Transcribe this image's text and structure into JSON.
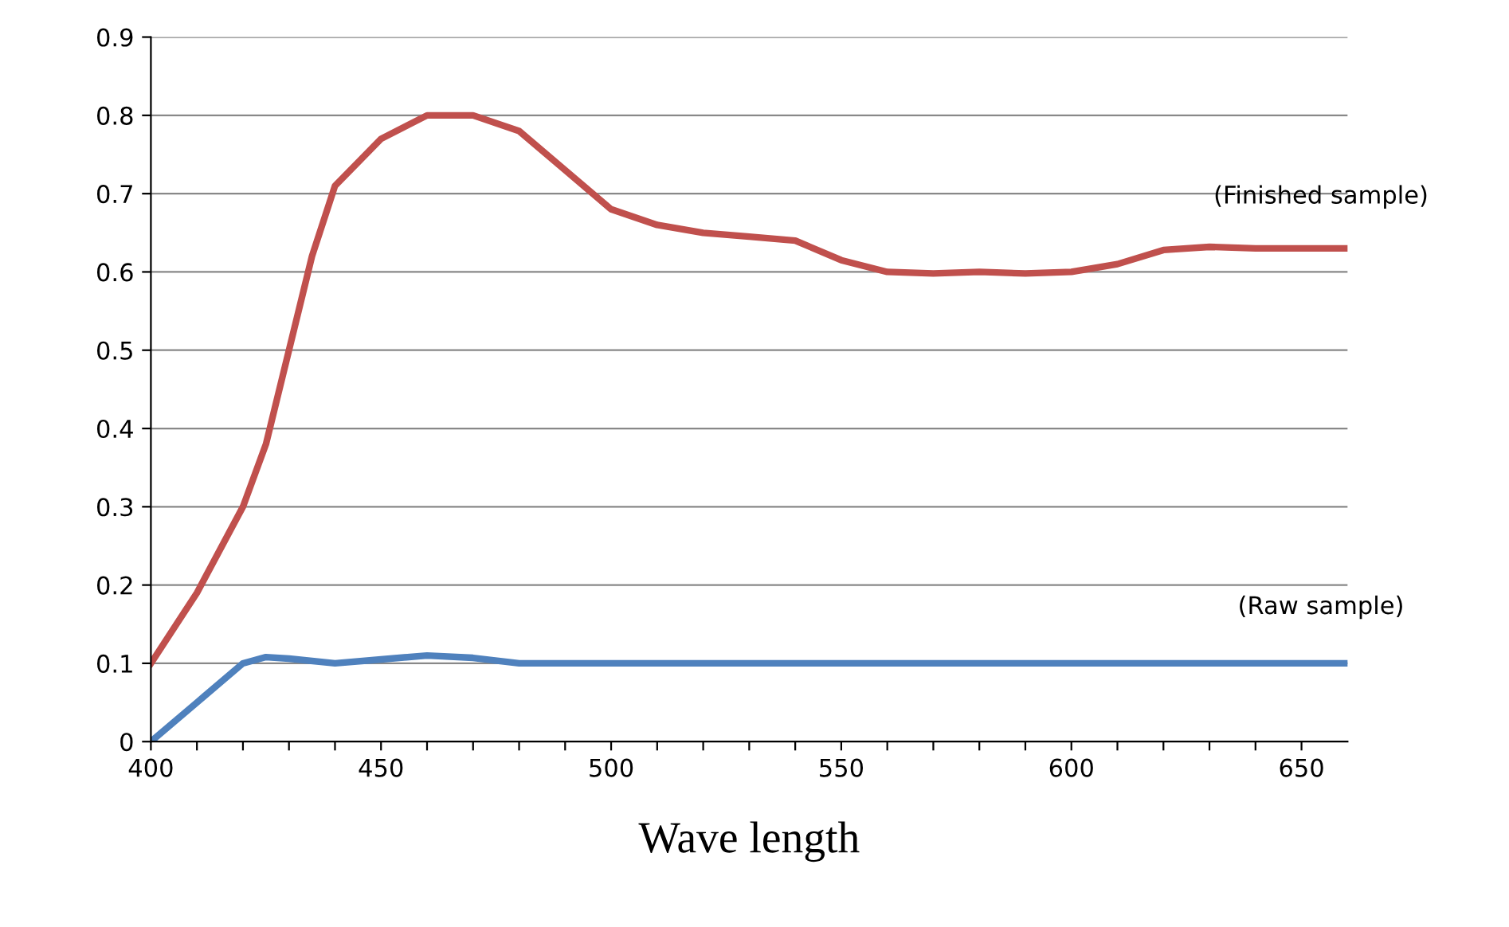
{
  "chart_data": {
    "type": "line",
    "xlabel": "Wave length",
    "xlim": [
      400,
      660
    ],
    "ylim": [
      0,
      0.9
    ],
    "xticks": [
      400,
      {
        "value": 410,
        "label": null
      },
      {
        "value": 420,
        "label": null
      },
      {
        "value": 430,
        "label": null
      },
      {
        "value": 440,
        "label": null
      },
      450,
      {
        "value": 460,
        "label": null
      },
      {
        "value": 470,
        "label": null
      },
      {
        "value": 480,
        "label": null
      },
      {
        "value": 490,
        "label": null
      },
      500,
      {
        "value": 510,
        "label": null
      },
      {
        "value": 520,
        "label": null
      },
      {
        "value": 530,
        "label": null
      },
      {
        "value": 540,
        "label": null
      },
      550,
      {
        "value": 560,
        "label": null
      },
      {
        "value": 570,
        "label": null
      },
      {
        "value": 580,
        "label": null
      },
      {
        "value": 590,
        "label": null
      },
      600,
      {
        "value": 610,
        "label": null
      },
      {
        "value": 620,
        "label": null
      },
      {
        "value": 630,
        "label": null
      },
      {
        "value": 640,
        "label": null
      },
      650
    ],
    "yticks": [
      0,
      0.1,
      0.2,
      0.3,
      0.4,
      0.5,
      0.6,
      0.7,
      0.8,
      0.9
    ],
    "grid": "y",
    "legend": false,
    "marker": "none",
    "line_style": "solid",
    "series": [
      {
        "name": "(Finished sample)",
        "color": "#c0504d",
        "x": [
          400,
          410,
          420,
          425,
          430,
          435,
          440,
          450,
          460,
          470,
          480,
          490,
          500,
          510,
          520,
          530,
          540,
          550,
          560,
          570,
          580,
          590,
          600,
          610,
          620,
          630,
          640,
          650,
          660
        ],
        "values": [
          0.1,
          0.19,
          0.3,
          0.38,
          0.5,
          0.62,
          0.71,
          0.77,
          0.8,
          0.8,
          0.78,
          0.73,
          0.68,
          0.66,
          0.65,
          0.645,
          0.64,
          0.615,
          0.6,
          0.598,
          0.6,
          0.598,
          0.6,
          0.61,
          0.628,
          0.632,
          0.63,
          0.63,
          0.63
        ]
      },
      {
        "name": "(Raw sample)",
        "color": "#4f81bd",
        "x": [
          400,
          410,
          420,
          425,
          430,
          440,
          450,
          460,
          470,
          480,
          500,
          550,
          600,
          660
        ],
        "values": [
          0.0,
          0.05,
          0.1,
          0.108,
          0.106,
          0.1,
          0.105,
          0.11,
          0.107,
          0.1,
          0.1,
          0.1,
          0.1,
          0.1
        ]
      }
    ]
  }
}
